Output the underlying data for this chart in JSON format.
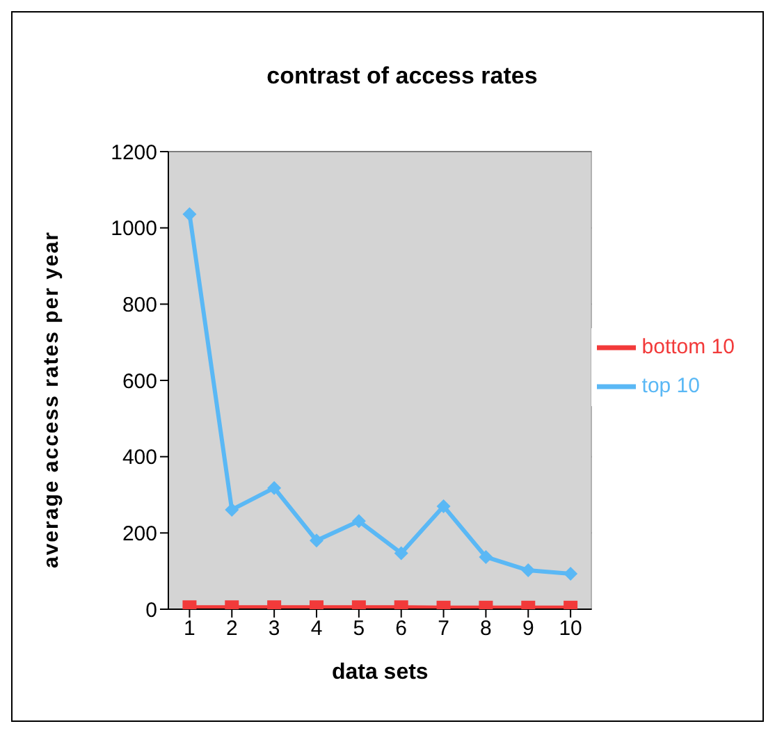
{
  "chart_data": {
    "type": "line",
    "title": "contrast of access rates",
    "xlabel": "data sets",
    "ylabel": "average access rates per year",
    "categories": [
      "1",
      "2",
      "3",
      "4",
      "5",
      "6",
      "7",
      "8",
      "9",
      "10"
    ],
    "series": [
      {
        "name": "top 10",
        "color": "#5ab8f5",
        "marker": "diamond",
        "values": [
          1036,
          261,
          318,
          180,
          231,
          147,
          270,
          137,
          102,
          93
        ]
      },
      {
        "name": "bottom 10",
        "color": "#f23a3a",
        "marker": "square",
        "values": [
          5,
          5,
          5,
          5,
          5,
          5,
          4,
          4,
          4,
          4
        ]
      }
    ],
    "ylim": [
      0,
      1200
    ],
    "yticks": [
      0,
      200,
      400,
      600,
      800,
      1000,
      1200
    ],
    "grid": "y",
    "legend": "right"
  }
}
